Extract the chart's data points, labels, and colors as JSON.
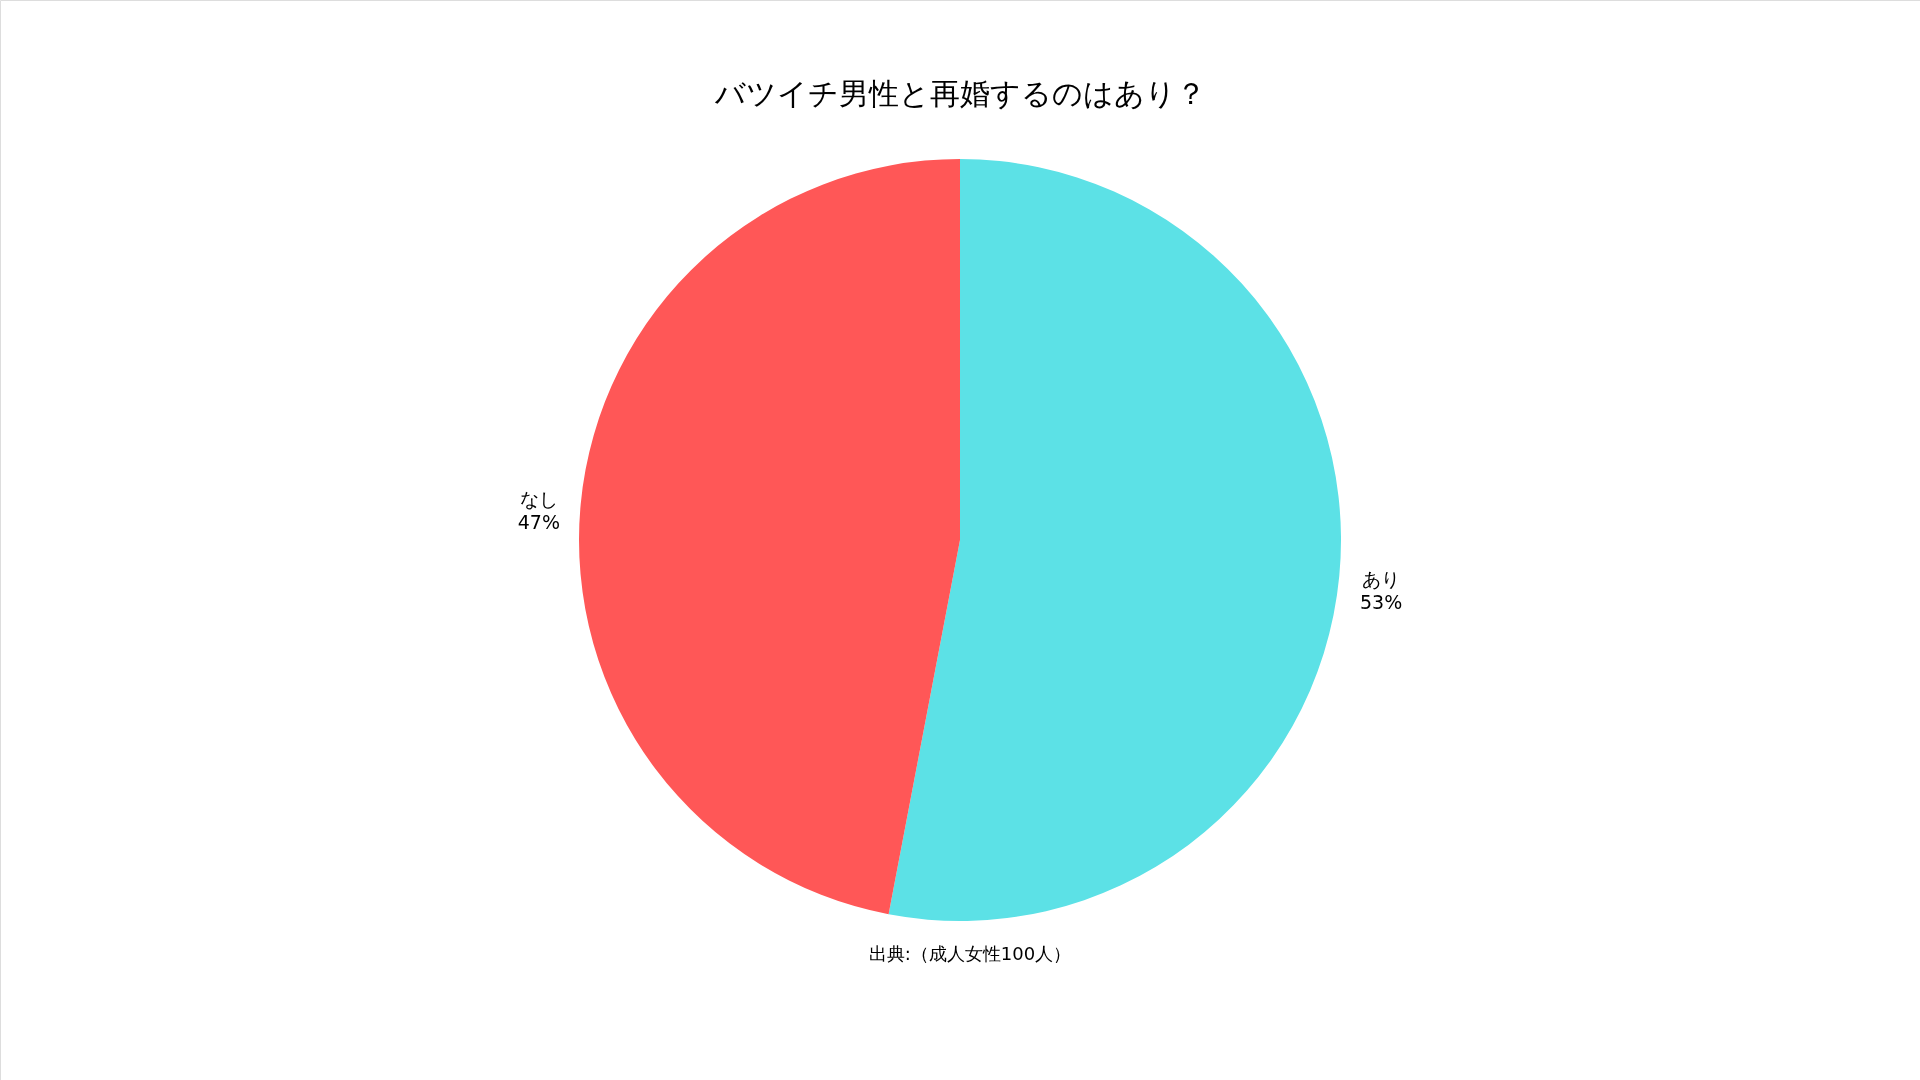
{
  "chart_data": {
    "type": "pie",
    "title": "バツイチ男性と再婚するのはあり？",
    "categories": [
      "あり",
      "なし"
    ],
    "values": [
      53,
      47
    ],
    "colors": [
      "#5ce1e6",
      "#ff5757"
    ],
    "value_labels": [
      "53%",
      "47%"
    ],
    "annotations": [
      "出典:（成人女性100人）"
    ],
    "legend": false
  }
}
